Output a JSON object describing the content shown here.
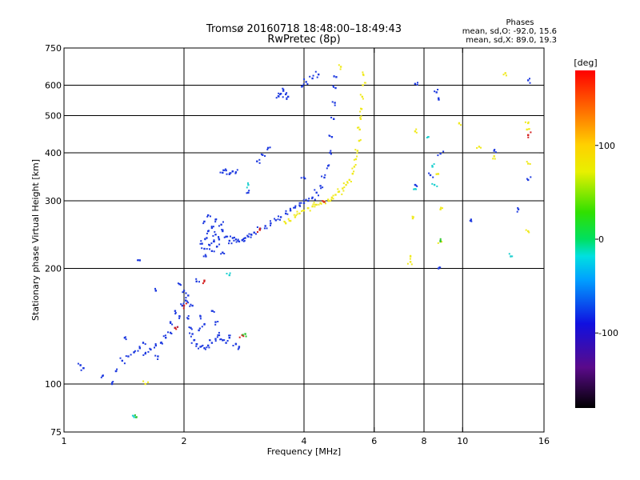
{
  "chart_data": {
    "type": "scatter",
    "title_line1": "Tromsø 20160718 18:48:00–18:49:43",
    "title_line2": "RwPretec (8p)",
    "stats_title": "Phases",
    "stats_line1": "mean, sd,O: -92.0, 15.6",
    "stats_line2": "mean, sd,X:  89.0, 19.3",
    "xlabel": "Frequency [MHz]",
    "ylabel": "Stationary phase Virtual Height [km]",
    "x_scale": "log",
    "y_scale": "log",
    "xlim": [
      1,
      16
    ],
    "ylim": [
      75,
      750
    ],
    "x_ticks": [
      1,
      2,
      4,
      6,
      8,
      10,
      16
    ],
    "x_tick_labels": [
      "1",
      "2",
      "4",
      "6",
      "8",
      "10",
      "16"
    ],
    "y_ticks": [
      75,
      100,
      200,
      300,
      400,
      500,
      600,
      750
    ],
    "y_tick_labels": [
      "75",
      "100",
      "200",
      "300",
      "400",
      "500",
      "600",
      "750"
    ],
    "x_grid": [
      2,
      4,
      6,
      8,
      10
    ],
    "y_grid": [
      100,
      200,
      300,
      400,
      500,
      600
    ],
    "colorbar": {
      "label": "[deg]",
      "range": [
        -180,
        180
      ],
      "ticks": [
        100,
        0,
        -100
      ],
      "tick_labels": [
        "100",
        "0",
        "-100"
      ]
    },
    "series": [
      {
        "mode": "O",
        "color": "#1f3be0",
        "points": [
          [
            1.1,
            112
          ],
          [
            1.12,
            110
          ],
          [
            1.25,
            105
          ],
          [
            1.32,
            100
          ],
          [
            1.35,
            108
          ],
          [
            1.4,
            115
          ],
          [
            1.45,
            118
          ],
          [
            1.5,
            121
          ],
          [
            1.55,
            124
          ],
          [
            1.6,
            120
          ],
          [
            1.65,
            123
          ],
          [
            1.7,
            126
          ],
          [
            1.75,
            128
          ],
          [
            1.8,
            132
          ],
          [
            1.85,
            136
          ],
          [
            1.9,
            140
          ],
          [
            1.95,
            150
          ],
          [
            1.98,
            160
          ],
          [
            2.0,
            175
          ],
          [
            2.02,
            165
          ],
          [
            2.05,
            148
          ],
          [
            2.08,
            140
          ],
          [
            2.1,
            135
          ],
          [
            2.12,
            130
          ],
          [
            2.15,
            127
          ],
          [
            2.2,
            125
          ],
          [
            2.25,
            124
          ],
          [
            2.3,
            126
          ],
          [
            2.35,
            128
          ],
          [
            2.4,
            131
          ],
          [
            2.45,
            134
          ],
          [
            2.5,
            130
          ],
          [
            2.55,
            128
          ],
          [
            2.6,
            132
          ],
          [
            2.7,
            127
          ],
          [
            2.75,
            125
          ],
          [
            1.95,
            182
          ],
          [
            2.05,
            170
          ],
          [
            2.1,
            160
          ],
          [
            2.2,
            150
          ],
          [
            2.25,
            143
          ],
          [
            2.35,
            155
          ],
          [
            2.4,
            145
          ],
          [
            1.85,
            145
          ],
          [
            1.9,
            155
          ],
          [
            2.15,
            185
          ],
          [
            1.42,
            132
          ],
          [
            1.58,
            128
          ],
          [
            1.72,
            118
          ],
          [
            2.18,
            138
          ],
          [
            2.22,
            232
          ],
          [
            2.25,
            225
          ],
          [
            2.28,
            240
          ],
          [
            2.3,
            250
          ],
          [
            2.32,
            230
          ],
          [
            2.35,
            222
          ],
          [
            2.38,
            235
          ],
          [
            2.4,
            245
          ],
          [
            2.42,
            228
          ],
          [
            2.45,
            238
          ],
          [
            2.48,
            260
          ],
          [
            2.5,
            250
          ],
          [
            2.55,
            242
          ],
          [
            2.6,
            236
          ],
          [
            2.65,
            240
          ],
          [
            2.7,
            238
          ],
          [
            2.75,
            235
          ],
          [
            2.8,
            237
          ],
          [
            2.85,
            240
          ],
          [
            2.9,
            242
          ],
          [
            2.95,
            245
          ],
          [
            3.0,
            248
          ],
          [
            3.1,
            253
          ],
          [
            3.2,
            258
          ],
          [
            3.3,
            262
          ],
          [
            3.4,
            267
          ],
          [
            3.5,
            272
          ],
          [
            3.6,
            278
          ],
          [
            3.7,
            283
          ],
          [
            3.8,
            288
          ],
          [
            3.9,
            292
          ],
          [
            4.0,
            296
          ],
          [
            4.1,
            300
          ],
          [
            4.2,
            306
          ],
          [
            4.3,
            315
          ],
          [
            4.4,
            328
          ],
          [
            4.5,
            345
          ],
          [
            4.6,
            370
          ],
          [
            4.65,
            400
          ],
          [
            4.7,
            440
          ],
          [
            4.75,
            490
          ],
          [
            4.78,
            540
          ],
          [
            4.8,
            590
          ],
          [
            4.82,
            630
          ],
          [
            2.25,
            265
          ],
          [
            2.3,
            275
          ],
          [
            2.35,
            255
          ],
          [
            2.4,
            268
          ],
          [
            2.27,
            215
          ],
          [
            2.5,
            220
          ],
          [
            2.5,
            355
          ],
          [
            2.55,
            360
          ],
          [
            2.6,
            352
          ],
          [
            2.65,
            358
          ],
          [
            2.7,
            356
          ],
          [
            3.05,
            380
          ],
          [
            3.15,
            395
          ],
          [
            3.25,
            412
          ],
          [
            3.45,
            562
          ],
          [
            3.5,
            570
          ],
          [
            3.55,
            580
          ],
          [
            3.6,
            568
          ],
          [
            3.65,
            560
          ],
          [
            3.95,
            595
          ],
          [
            4.05,
            612
          ],
          [
            4.2,
            625
          ],
          [
            4.35,
            640
          ],
          [
            2.9,
            315
          ],
          [
            1.55,
            210
          ],
          [
            4.0,
            345
          ],
          [
            7.6,
            605
          ],
          [
            8.6,
            575
          ],
          [
            8.7,
            555
          ],
          [
            8.3,
            350
          ],
          [
            8.7,
            200
          ],
          [
            13.8,
            285
          ],
          [
            14.6,
            340
          ],
          [
            14.6,
            618
          ],
          [
            10.5,
            268
          ],
          [
            12.0,
            405
          ],
          [
            7.6,
            330
          ],
          [
            8.8,
            398
          ],
          [
            1.7,
            175
          ]
        ]
      },
      {
        "mode": "X",
        "color": "#f0ea1e",
        "points": [
          [
            3.6,
            262
          ],
          [
            3.7,
            266
          ],
          [
            3.8,
            272
          ],
          [
            3.9,
            278
          ],
          [
            4.0,
            283
          ],
          [
            4.1,
            287
          ],
          [
            4.2,
            290
          ],
          [
            4.3,
            293
          ],
          [
            4.4,
            296
          ],
          [
            4.5,
            299
          ],
          [
            4.6,
            302
          ],
          [
            4.7,
            306
          ],
          [
            4.8,
            311
          ],
          [
            4.9,
            317
          ],
          [
            5.0,
            323
          ],
          [
            5.1,
            330
          ],
          [
            5.2,
            340
          ],
          [
            5.3,
            353
          ],
          [
            5.35,
            368
          ],
          [
            5.4,
            385
          ],
          [
            5.45,
            405
          ],
          [
            5.5,
            430
          ],
          [
            5.52,
            460
          ],
          [
            5.55,
            490
          ],
          [
            5.58,
            520
          ],
          [
            5.6,
            560
          ],
          [
            5.62,
            600
          ],
          [
            5.63,
            640
          ],
          [
            4.95,
            670
          ],
          [
            9.8,
            477
          ],
          [
            11.0,
            415
          ],
          [
            12.0,
            392
          ],
          [
            12.8,
            645
          ],
          [
            14.6,
            478
          ],
          [
            14.6,
            375
          ],
          [
            14.6,
            250
          ],
          [
            7.6,
            455
          ],
          [
            8.6,
            352
          ],
          [
            8.8,
            285
          ],
          [
            8.8,
            235
          ],
          [
            14.5,
            460
          ],
          [
            7.5,
            270
          ],
          [
            7.4,
            215
          ],
          [
            7.4,
            208
          ],
          [
            1.6,
            100
          ]
        ]
      },
      {
        "mode": "other",
        "color": "#20d0d0",
        "points": [
          [
            8.4,
            368
          ],
          [
            8.5,
            330
          ],
          [
            8.2,
            440
          ],
          [
            13.2,
            215
          ],
          [
            7.6,
            322
          ],
          [
            1.5,
            82
          ],
          [
            2.6,
            192
          ],
          [
            2.9,
            330
          ]
        ]
      },
      {
        "mode": "other",
        "color": "#d42020",
        "points": [
          [
            2.25,
            186
          ],
          [
            2.0,
            160
          ],
          [
            2.8,
            134
          ],
          [
            1.9,
            140
          ],
          [
            3.1,
            252
          ],
          [
            4.5,
            298
          ],
          [
            14.6,
            445
          ]
        ]
      },
      {
        "mode": "other",
        "color": "#2ec82e",
        "points": [
          [
            1.52,
            82
          ],
          [
            8.8,
            236
          ],
          [
            2.85,
            135
          ]
        ]
      }
    ]
  }
}
